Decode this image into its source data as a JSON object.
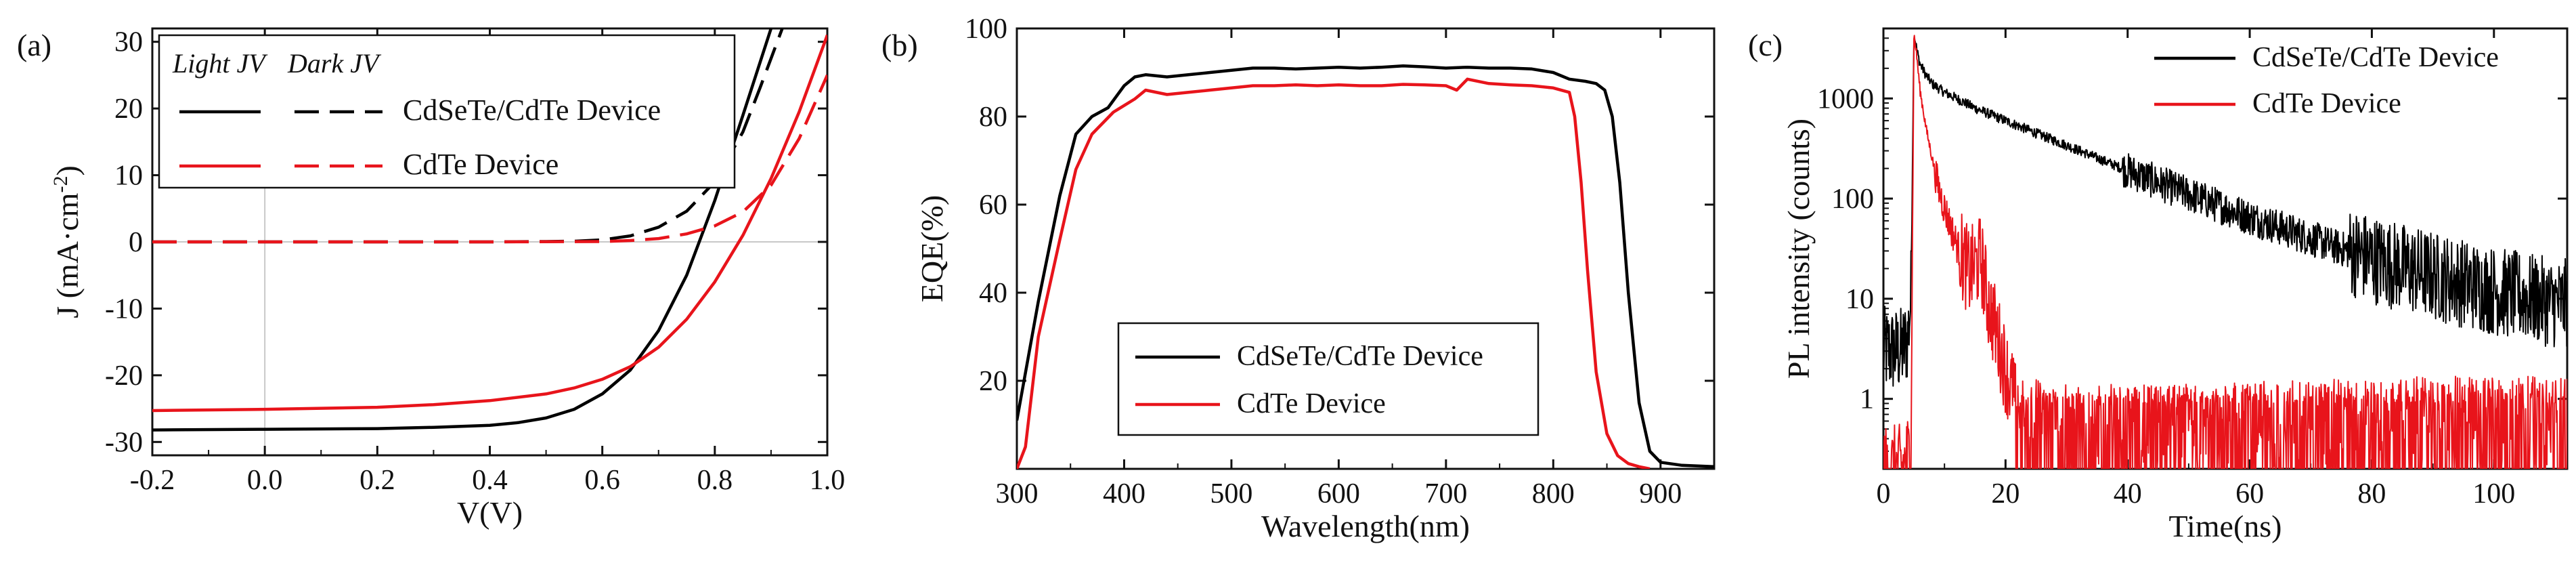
{
  "chart_data": [
    {
      "type": "line",
      "panel_label": "(a)",
      "title": "",
      "xlabel": "V(V)",
      "ylabel": "J (mA·cm",
      "ylabel_sup": "-2",
      "ylabel_close": ")",
      "xlim": [
        -0.2,
        1.0
      ],
      "ylim": [
        -32,
        32
      ],
      "xticks": [
        -0.2,
        0.0,
        0.2,
        0.4,
        0.6,
        0.8,
        1.0
      ],
      "xtick_labels": [
        "-0.2",
        "0.0",
        "0.2",
        "0.4",
        "0.6",
        "0.8",
        "1.0"
      ],
      "yticks": [
        -30,
        -20,
        -10,
        0,
        10,
        20,
        30
      ],
      "ytick_labels": [
        "-30",
        "-20",
        "-10",
        "0",
        "10",
        "20",
        "30"
      ],
      "legend": {
        "header_light": "Light JV",
        "header_dark": "Dark JV",
        "entries": [
          "CdSeTe/CdTe Device",
          "CdTe Device"
        ],
        "placement": "top-left"
      },
      "colors": {
        "CdSeTe/CdTe Device": "#000000",
        "CdTe Device": "#e8141b"
      },
      "series": [
        {
          "name": "CdSeTe/CdTe Device",
          "condition": "Light JV",
          "x": [
            -0.2,
            0.0,
            0.2,
            0.3,
            0.4,
            0.45,
            0.5,
            0.55,
            0.6,
            0.65,
            0.7,
            0.75,
            0.8,
            0.85,
            0.9
          ],
          "y": [
            -28.2,
            -28.1,
            -28.0,
            -27.8,
            -27.5,
            -27.1,
            -26.4,
            -25.1,
            -22.8,
            -19.2,
            -13.3,
            -5.0,
            6.2,
            19.0,
            32.0
          ]
        },
        {
          "name": "CdSeTe/CdTe Device",
          "condition": "Dark JV",
          "x": [
            -0.2,
            0.0,
            0.2,
            0.4,
            0.5,
            0.55,
            0.6,
            0.65,
            0.7,
            0.75,
            0.8,
            0.85,
            0.88,
            0.92
          ],
          "y": [
            0,
            0,
            0,
            0,
            0.05,
            0.1,
            0.3,
            0.9,
            2.2,
            4.6,
            9.0,
            16.5,
            23.0,
            32.0
          ]
        },
        {
          "name": "CdTe Device",
          "condition": "Light JV",
          "x": [
            -0.2,
            0.0,
            0.2,
            0.3,
            0.4,
            0.5,
            0.55,
            0.6,
            0.65,
            0.7,
            0.75,
            0.8,
            0.85,
            0.9,
            0.95,
            1.0
          ],
          "y": [
            -25.3,
            -25.1,
            -24.8,
            -24.4,
            -23.8,
            -22.8,
            -21.9,
            -20.6,
            -18.7,
            -15.8,
            -11.6,
            -6.0,
            1.0,
            9.5,
            19.5,
            31.0
          ]
        },
        {
          "name": "CdTe Device",
          "condition": "Dark JV",
          "x": [
            -0.2,
            0.0,
            0.2,
            0.4,
            0.6,
            0.65,
            0.7,
            0.75,
            0.8,
            0.85,
            0.9,
            0.95,
            1.0
          ],
          "y": [
            0,
            0,
            0,
            0,
            0.05,
            0.2,
            0.5,
            1.2,
            2.4,
            4.5,
            8.5,
            15.5,
            25.0
          ]
        }
      ]
    },
    {
      "type": "line",
      "panel_label": "(b)",
      "title": "",
      "xlabel": "Wavelength(nm)",
      "ylabel": "EQE(%)",
      "xlim": [
        300,
        950
      ],
      "ylim": [
        0,
        100
      ],
      "xticks": [
        300,
        400,
        500,
        600,
        700,
        800,
        900
      ],
      "xtick_labels": [
        "300",
        "400",
        "500",
        "600",
        "700",
        "800",
        "900"
      ],
      "yticks": [
        20,
        40,
        60,
        80,
        100
      ],
      "ytick_labels": [
        "20",
        "40",
        "60",
        "80",
        "100"
      ],
      "legend": {
        "entries": [
          "CdSeTe/CdTe Device",
          "CdTe Device"
        ],
        "placement": "bottom-center"
      },
      "colors": {
        "CdSeTe/CdTe Device": "#000000",
        "CdTe Device": "#e8141b"
      },
      "series": [
        {
          "name": "CdSeTe/CdTe Device",
          "x": [
            300,
            320,
            340,
            355,
            370,
            385,
            400,
            410,
            420,
            440,
            460,
            480,
            500,
            520,
            540,
            560,
            580,
            600,
            620,
            640,
            660,
            680,
            700,
            720,
            740,
            760,
            780,
            800,
            815,
            830,
            840,
            848,
            855,
            862,
            870,
            880,
            890,
            900,
            920,
            950
          ],
          "y": [
            11,
            38,
            62,
            76,
            80,
            82,
            87,
            89,
            89.5,
            89,
            89.5,
            90,
            90.5,
            91,
            91,
            90.8,
            91,
            91.2,
            91,
            91.2,
            91.5,
            91.3,
            91,
            91.2,
            91,
            91,
            90.8,
            90,
            88.5,
            88,
            87.5,
            86,
            80,
            65,
            40,
            15,
            4,
            1.5,
            0.8,
            0.5
          ]
        },
        {
          "name": "CdTe Device",
          "x": [
            300,
            308,
            320,
            340,
            355,
            370,
            390,
            410,
            420,
            440,
            460,
            480,
            500,
            520,
            540,
            560,
            580,
            600,
            620,
            640,
            660,
            680,
            700,
            710,
            720,
            740,
            760,
            780,
            800,
            815,
            820,
            826,
            832,
            840,
            850,
            860,
            870,
            880,
            890
          ],
          "y": [
            0,
            5,
            30,
            52,
            68,
            76,
            81,
            84,
            86,
            85,
            85.5,
            86,
            86.5,
            87,
            87,
            87.2,
            87,
            87.2,
            87,
            87,
            87.3,
            87.2,
            87,
            86,
            88.5,
            87.5,
            87.2,
            87,
            86.5,
            85.5,
            80,
            65,
            45,
            22,
            8,
            3,
            1.2,
            0.5,
            0
          ]
        }
      ]
    },
    {
      "type": "line",
      "panel_label": "(c)",
      "title": "",
      "xlabel": "Time(ns)",
      "ylabel": "PL intensity (counts)",
      "xlim": [
        0,
        112
      ],
      "ylim": [
        0.2,
        5000
      ],
      "yscale": "log",
      "xticks": [
        0,
        20,
        40,
        60,
        80,
        100
      ],
      "xtick_labels": [
        "0",
        "20",
        "40",
        "60",
        "80",
        "100"
      ],
      "yticks": [
        1,
        10,
        100,
        1000
      ],
      "ytick_labels": [
        "1",
        "10",
        "100",
        "1000"
      ],
      "legend": {
        "entries": [
          "CdSeTe/CdTe Device",
          "CdTe Device"
        ],
        "placement": "top-right"
      },
      "colors": {
        "CdSeTe/CdTe Device": "#000000",
        "CdTe Device": "#e8141b"
      },
      "series": [
        {
          "name": "CdSeTe/CdTe Device",
          "style": "noisy",
          "x": [
            0,
            1,
            2,
            3,
            4,
            4.5,
            5,
            5.5,
            6,
            7,
            8,
            10,
            12,
            15,
            20,
            25,
            30,
            40,
            50,
            60,
            70,
            80,
            90,
            100,
            110,
            112
          ],
          "y": [
            3,
            3,
            3,
            3,
            4,
            10,
            4500,
            3000,
            2200,
            1700,
            1400,
            1150,
            1000,
            800,
            600,
            450,
            340,
            190,
            110,
            65,
            40,
            25,
            17,
            12,
            9,
            9
          ]
        },
        {
          "name": "CdTe Device",
          "style": "noisy",
          "x": [
            0,
            3,
            4.5,
            5,
            5.5,
            6,
            7,
            8,
            9,
            10,
            12,
            14,
            16,
            17,
            18,
            19,
            20,
            21,
            22,
            30,
            50,
            70,
            90,
            110,
            112
          ],
          "y": [
            0.2,
            0.2,
            0.3,
            4500,
            2500,
            1200,
            500,
            250,
            130,
            80,
            35,
            18,
            25,
            10,
            6,
            3.5,
            2,
            1.2,
            0.7,
            0.5,
            0.5,
            0.55,
            0.6,
            0.6,
            0.6
          ]
        }
      ]
    }
  ]
}
